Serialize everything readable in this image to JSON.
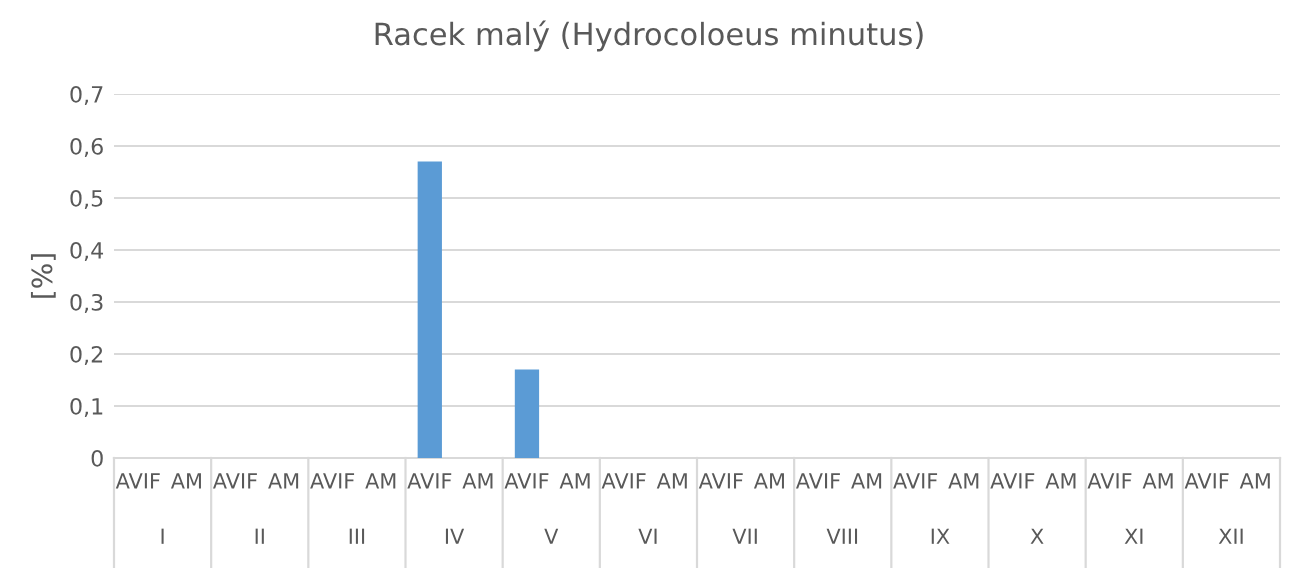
{
  "chart_data": {
    "type": "bar",
    "title": "Racek malý (Hydrocoloeus minutus)",
    "ylabel": "[%]",
    "categories": [
      "I",
      "II",
      "III",
      "IV",
      "V",
      "VI",
      "VII",
      "VIII",
      "IX",
      "X",
      "XI",
      "XII"
    ],
    "series": [
      {
        "name": "AVIF",
        "color": "#5b9bd5",
        "values": [
          0,
          0,
          0,
          0.57,
          0.17,
          0,
          0,
          0,
          0,
          0,
          0,
          0
        ]
      },
      {
        "name": "AM",
        "values": [
          0,
          0,
          0,
          0,
          0,
          0,
          0,
          0,
          0,
          0,
          0,
          0
        ]
      }
    ],
    "ylim": [
      0,
      0.7
    ],
    "yticks": [
      {
        "value": 0,
        "label": "0"
      },
      {
        "value": 0.1,
        "label": "0,1"
      },
      {
        "value": 0.2,
        "label": "0,2"
      },
      {
        "value": 0.3,
        "label": "0,3"
      },
      {
        "value": 0.4,
        "label": "0,4"
      },
      {
        "value": 0.5,
        "label": "0,5"
      },
      {
        "value": 0.6,
        "label": "0,6"
      },
      {
        "value": 0.7,
        "label": "0,7"
      }
    ],
    "grid": "y",
    "legend": false
  }
}
